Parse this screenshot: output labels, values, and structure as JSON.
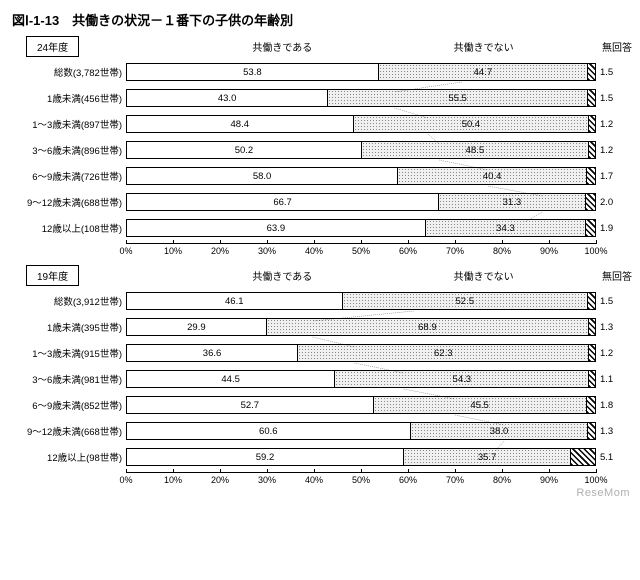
{
  "title": "図Ⅰ-1-13　共働きの状況－１番下の子供の年齢別",
  "legend": {
    "yes": "共働きである",
    "no": "共働きでない",
    "na": "無回答"
  },
  "axis": {
    "min": 0,
    "max": 100,
    "step": 10,
    "suffix": "%"
  },
  "colors": {
    "yes_bg": "#ffffff",
    "no_dot": "#888888",
    "na_stripe": "#000000",
    "border": "#000000",
    "background": "#ffffff"
  },
  "panels": [
    {
      "year_label": "24年度",
      "rows": [
        {
          "label": "総数(3,782世帯)",
          "yes": 53.8,
          "no": 44.7,
          "na": 1.5
        },
        {
          "label": "1歳未満(456世帯)",
          "yes": 43.0,
          "no": 55.5,
          "na": 1.5
        },
        {
          "label": "1～3歳未満(897世帯)",
          "yes": 48.4,
          "no": 50.4,
          "na": 1.2
        },
        {
          "label": "3～6歳未満(896世帯)",
          "yes": 50.2,
          "no": 48.5,
          "na": 1.2
        },
        {
          "label": "6～9歳未満(726世帯)",
          "yes": 58.0,
          "no": 40.4,
          "na": 1.7
        },
        {
          "label": "9～12歳未満(688世帯)",
          "yes": 66.7,
          "no": 31.3,
          "na": 2.0
        },
        {
          "label": "12歳以上(108世帯)",
          "yes": 63.9,
          "no": 34.3,
          "na": 1.9
        }
      ]
    },
    {
      "year_label": "19年度",
      "rows": [
        {
          "label": "総数(3,912世帯)",
          "yes": 46.1,
          "no": 52.5,
          "na": 1.5
        },
        {
          "label": "1歳未満(395世帯)",
          "yes": 29.9,
          "no": 68.9,
          "na": 1.3
        },
        {
          "label": "1～3歳未満(915世帯)",
          "yes": 36.6,
          "no": 62.3,
          "na": 1.2
        },
        {
          "label": "3～6歳未満(981世帯)",
          "yes": 44.5,
          "no": 54.3,
          "na": 1.1
        },
        {
          "label": "6～9歳未満(852世帯)",
          "yes": 52.7,
          "no": 45.5,
          "na": 1.8
        },
        {
          "label": "9～12歳未満(668世帯)",
          "yes": 60.6,
          "no": 38.0,
          "na": 1.3
        },
        {
          "label": "12歳以上(98世帯)",
          "yes": 59.2,
          "no": 35.7,
          "na": 5.1
        }
      ]
    }
  ],
  "watermark": "ReseMom"
}
